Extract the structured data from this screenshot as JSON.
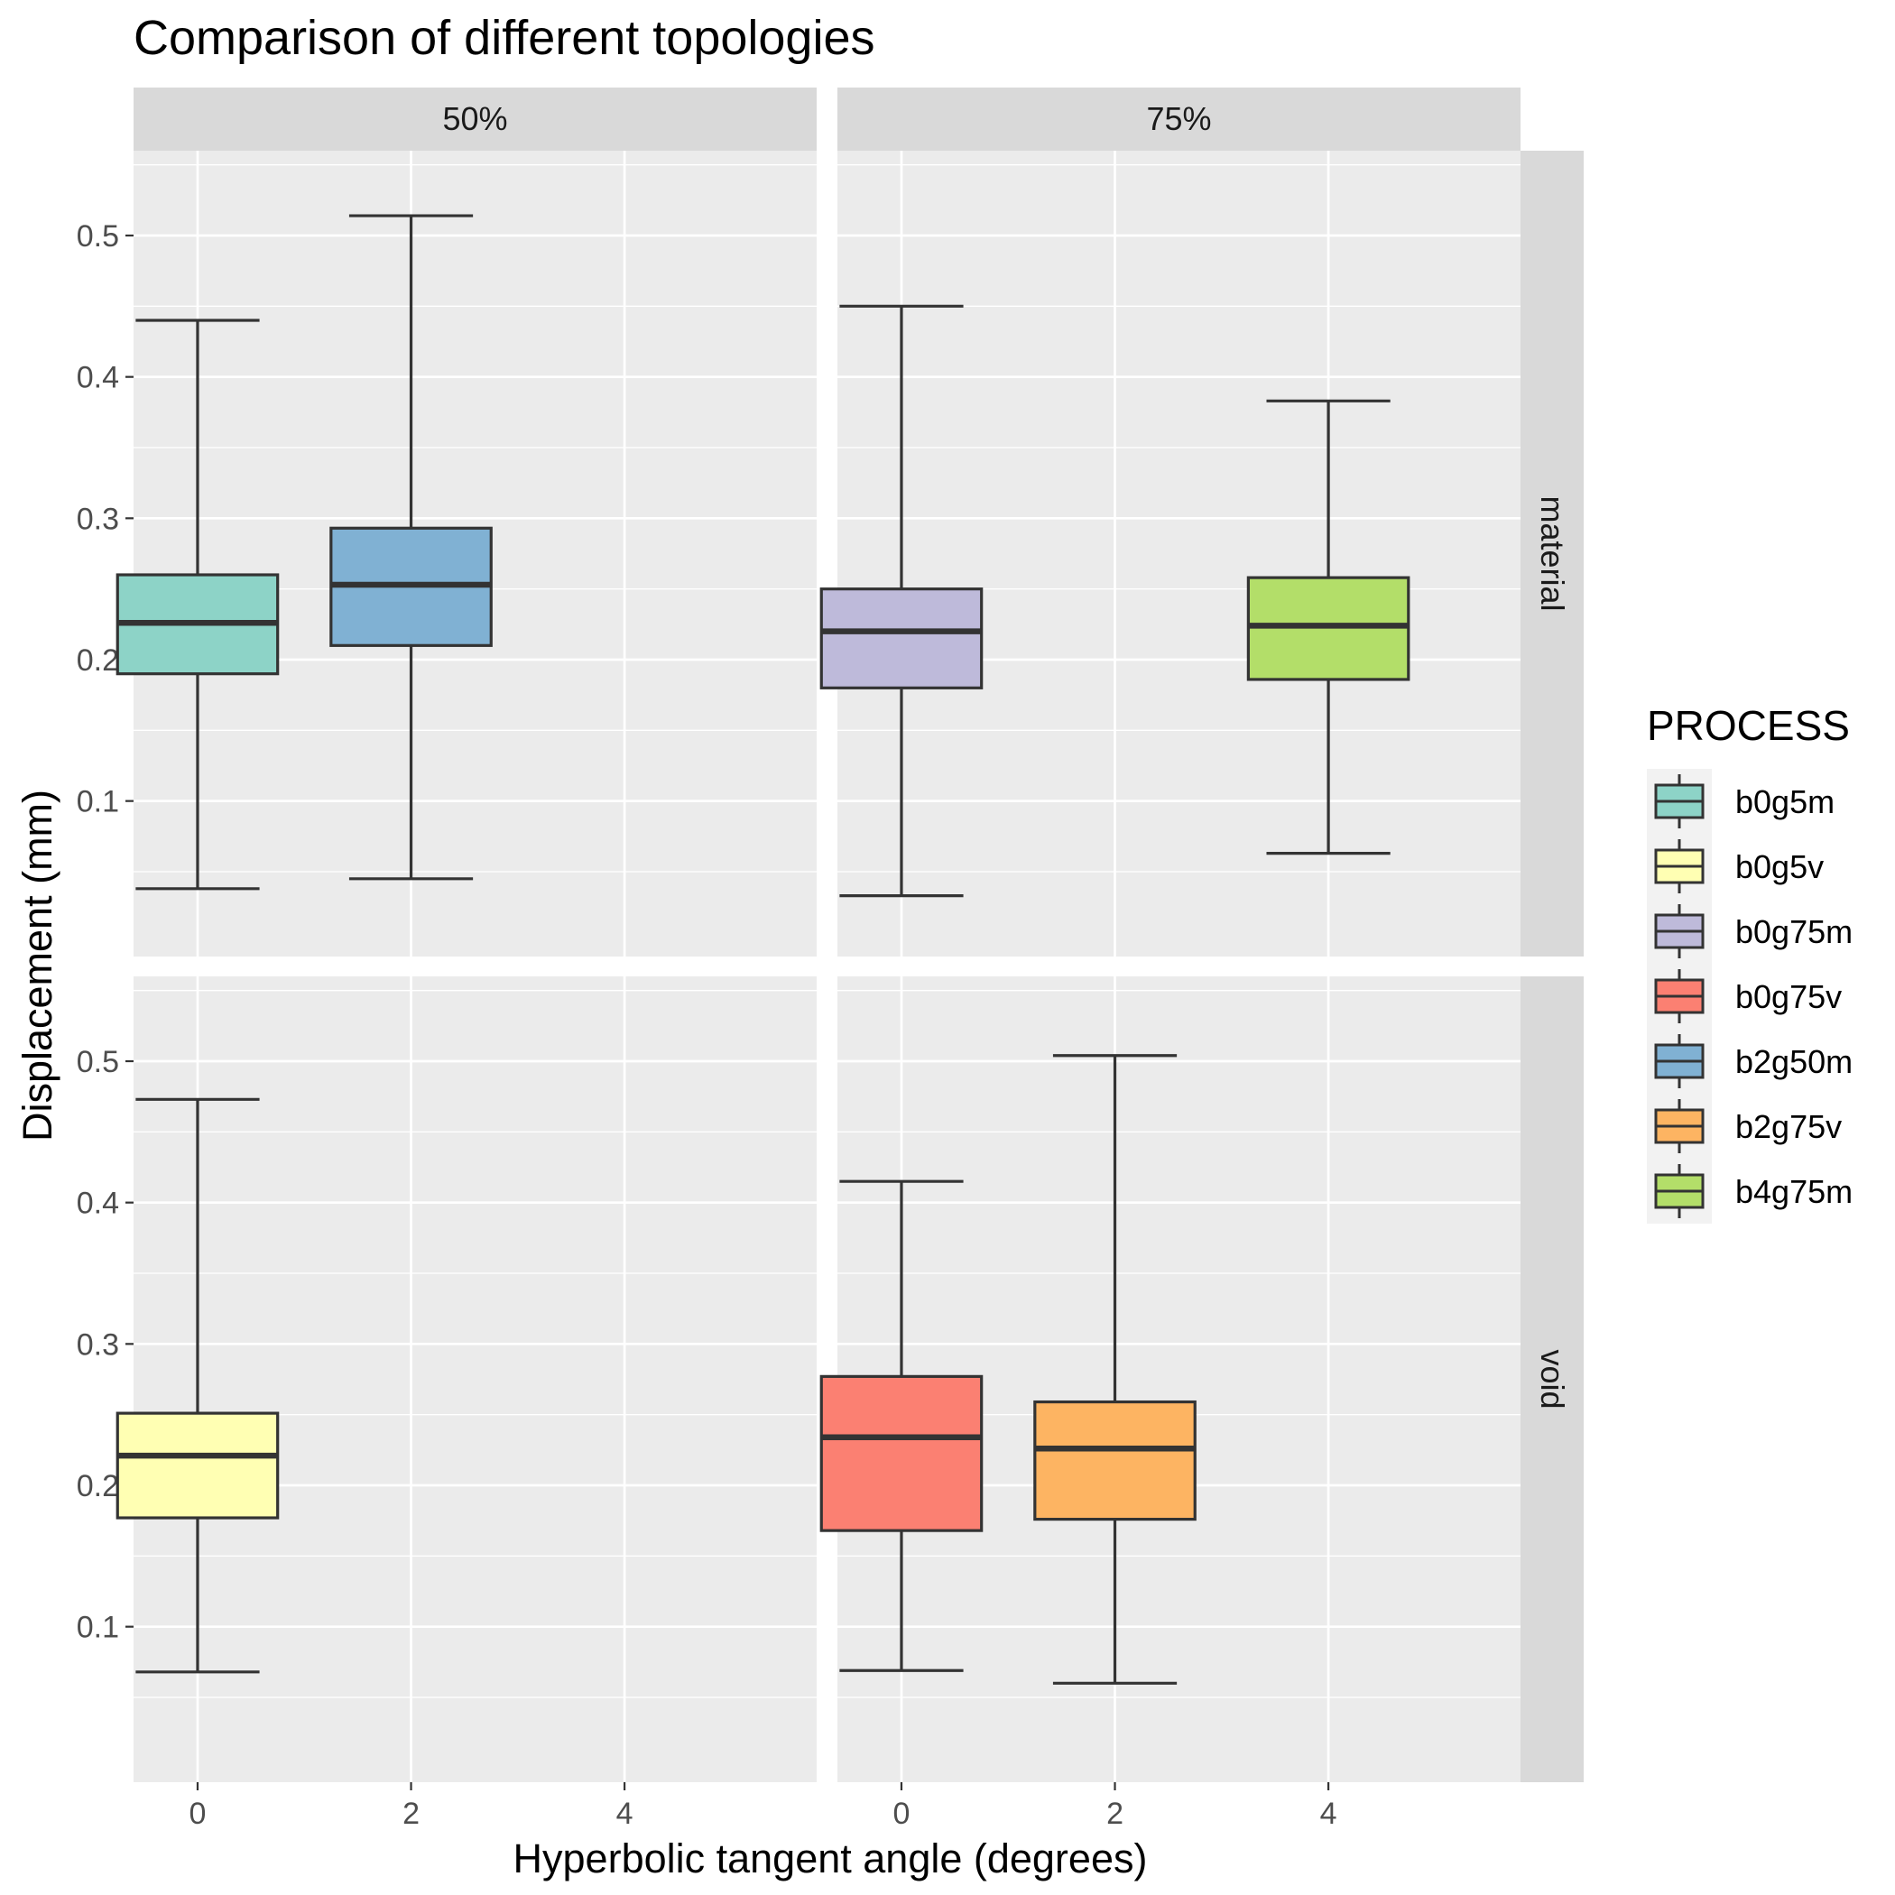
{
  "chart_data": {
    "type": "box",
    "title": "Comparison of different topologies",
    "xlabel": "Hyperbolic tangent angle (degrees)",
    "ylabel": "Displacement (mm)",
    "x_ticks": [
      0,
      2,
      4
    ],
    "y_ticks": [
      0.1,
      0.2,
      0.3,
      0.4,
      0.5
    ],
    "x_range": [
      -0.6,
      5.8
    ],
    "y_range": [
      -0.01,
      0.56
    ],
    "facet_columns": [
      "50%",
      "75%"
    ],
    "facet_rows": [
      "material",
      "void"
    ],
    "legend_title": "PROCESS",
    "legend_position": "right",
    "legend": [
      {
        "name": "b0g5m",
        "color": "#8DD3C7"
      },
      {
        "name": "b0g5v",
        "color": "#FFFFB3"
      },
      {
        "name": "b0g75m",
        "color": "#BEBADA"
      },
      {
        "name": "b0g75v",
        "color": "#FB8072"
      },
      {
        "name": "b2g50m",
        "color": "#80B1D3"
      },
      {
        "name": "b2g75v",
        "color": "#FDB462"
      },
      {
        "name": "b4g75m",
        "color": "#B3DE69"
      }
    ],
    "series": [
      {
        "process": "b0g5m",
        "col": "50%",
        "row": "material",
        "x": 0,
        "min": 0.038,
        "q1": 0.19,
        "median": 0.226,
        "q3": 0.26,
        "max": 0.44
      },
      {
        "process": "b2g50m",
        "col": "50%",
        "row": "material",
        "x": 2,
        "min": 0.045,
        "q1": 0.21,
        "median": 0.253,
        "q3": 0.293,
        "max": 0.514
      },
      {
        "process": "b0g75m",
        "col": "75%",
        "row": "material",
        "x": 0,
        "min": 0.033,
        "q1": 0.18,
        "median": 0.22,
        "q3": 0.25,
        "max": 0.45
      },
      {
        "process": "b4g75m",
        "col": "75%",
        "row": "material",
        "x": 4,
        "min": 0.063,
        "q1": 0.186,
        "median": 0.224,
        "q3": 0.258,
        "max": 0.383
      },
      {
        "process": "b0g5v",
        "col": "50%",
        "row": "void",
        "x": 0,
        "min": 0.068,
        "q1": 0.177,
        "median": 0.221,
        "q3": 0.251,
        "max": 0.473
      },
      {
        "process": "b0g75v",
        "col": "75%",
        "row": "void",
        "x": 0,
        "min": 0.069,
        "q1": 0.168,
        "median": 0.234,
        "q3": 0.277,
        "max": 0.415
      },
      {
        "process": "b2g75v",
        "col": "75%",
        "row": "void",
        "x": 2,
        "min": 0.06,
        "q1": 0.176,
        "median": 0.226,
        "q3": 0.259,
        "max": 0.504
      }
    ]
  }
}
